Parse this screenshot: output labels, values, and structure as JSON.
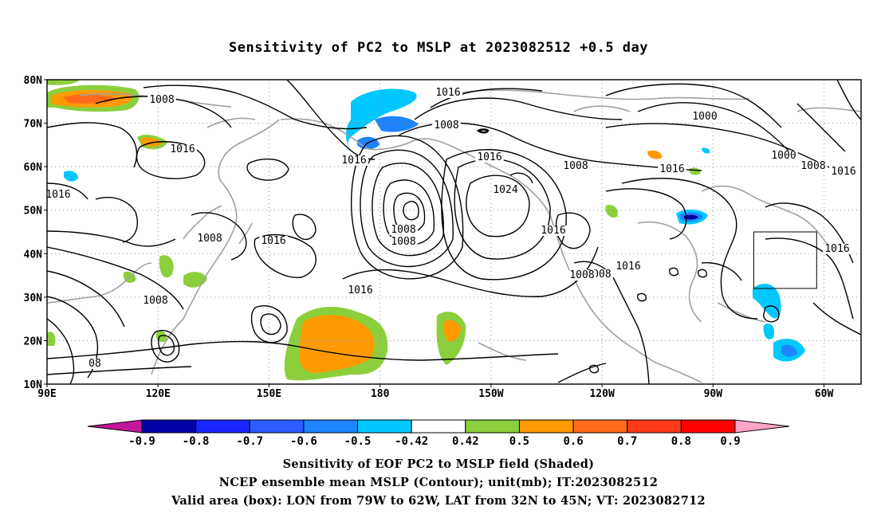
{
  "title": "Sensitivity of PC2 to MSLP at 2023082512 +0.5 day",
  "map": {
    "lat_labels": [
      "80N",
      "70N",
      "60N",
      "50N",
      "40N",
      "30N",
      "20N",
      "10N"
    ],
    "lon_labels": [
      "90E",
      "120E",
      "150E",
      "180",
      "150W",
      "120W",
      "90W",
      "60W"
    ],
    "lat_range": [
      10,
      80
    ],
    "lon_range_east": [
      90,
      310
    ],
    "projection": "cylindrical equidistant",
    "grid": "dotted",
    "contour_color": "#000000",
    "coastline_color": "#a0a0a0",
    "isobar_labels": [
      "1008",
      "1016",
      "1016",
      "1008",
      "1016",
      "1016",
      "1024",
      "1016",
      "1008",
      "1000",
      "1008",
      "1000",
      "1008",
      "1016",
      "1016",
      "1016",
      "1008",
      "1016",
      "1016",
      "1016",
      "1008",
      "1008",
      "1016",
      "08",
      "1008",
      "1008",
      "1016",
      "1016"
    ],
    "valid_box": {
      "lon_west": -79,
      "lon_east": -62,
      "lat_south": 32,
      "lat_north": 45
    }
  },
  "colorbar": {
    "labels": [
      "-0.9",
      "-0.8",
      "-0.7",
      "-0.6",
      "-0.5",
      "-0.42",
      "0.42",
      "0.5",
      "0.6",
      "0.7",
      "0.8",
      "0.9"
    ],
    "colors": [
      "#0000a8",
      "#1a26ff",
      "#2c5cff",
      "#1e84ff",
      "#00c8ff",
      "#ffffff",
      "#8ccf3c",
      "#ff9a00",
      "#ff6a1a",
      "#ff3a1a",
      "#ff0000"
    ],
    "under_color": "#c0189a",
    "over_color": "#ffa4c8"
  },
  "footer": {
    "line1": "Sensitivity of EOF PC2 to MSLP field (Shaded)",
    "line2": "NCEP ensemble mean MSLP (Contour); unit(mb); IT:2023082512",
    "line3": "Valid area (box): LON from 79W to 62W, LAT from 32N to 45N; VT: 2023082712"
  }
}
